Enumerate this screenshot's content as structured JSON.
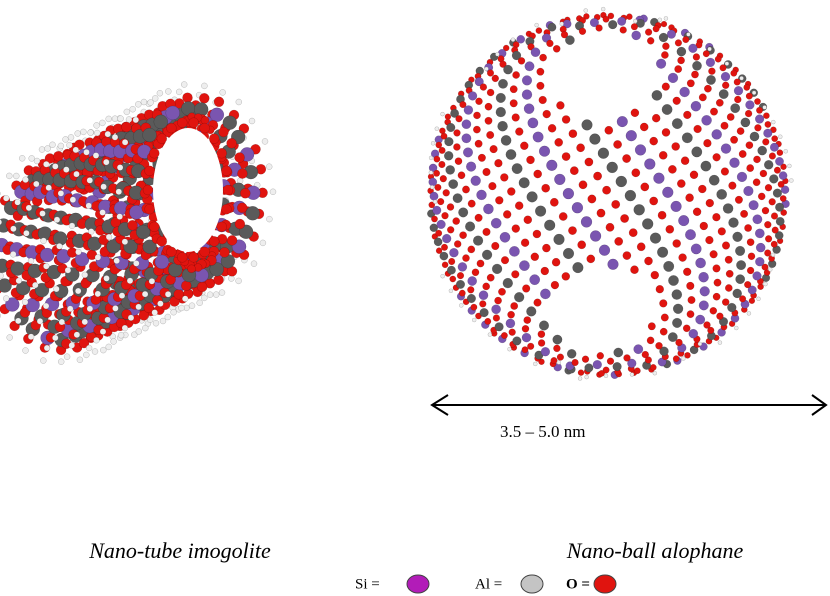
{
  "dimension_label": "3.5 – 5.0 nm",
  "captions": [
    "Nano-tube imogolite",
    "Nano-ball alophane"
  ],
  "legend": [
    {
      "label": "Si =",
      "color": "#b21cb8"
    },
    {
      "label": "Al =",
      "color": "#c4c4c4"
    },
    {
      "label": "O =",
      "color": "#e0140f"
    }
  ]
}
